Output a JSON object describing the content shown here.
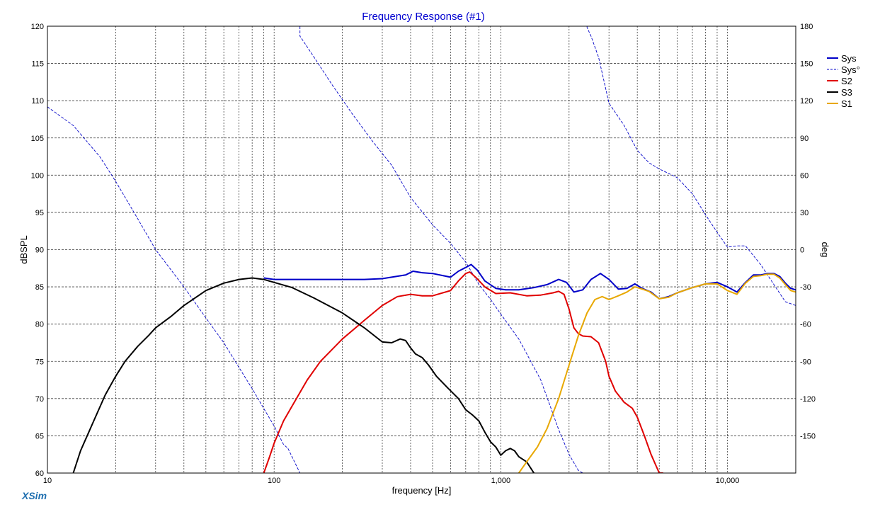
{
  "app": {
    "brand": "XSim"
  },
  "chart_data": {
    "type": "line",
    "title": "Frequency Response (#1)",
    "xlabel": "frequency [Hz]",
    "ylabel": "dBSPL",
    "y2label": "deg",
    "xscale": "log",
    "xlim": [
      10,
      20000
    ],
    "ylim": [
      60,
      120
    ],
    "y2lim": [
      -180,
      180
    ],
    "grid": true,
    "legend_position": "top-right",
    "x_ticks": [
      {
        "v": 10,
        "label": "10"
      },
      {
        "v": 100,
        "label": "100"
      },
      {
        "v": 1000,
        "label": "1,000"
      },
      {
        "v": 10000,
        "label": "10,000"
      }
    ],
    "y_ticks": [
      60,
      65,
      70,
      75,
      80,
      85,
      90,
      95,
      100,
      105,
      110,
      115,
      120
    ],
    "y2_ticks": [
      180,
      150,
      120,
      90,
      60,
      30,
      0,
      -30,
      -60,
      -90,
      -120,
      -150
    ],
    "y2_tick_labels": [
      "180",
      "150",
      "120",
      "90",
      "60",
      "30",
      "0",
      "-30",
      "-60",
      "-90",
      "-120",
      "-150"
    ],
    "series": [
      {
        "name": "Sys",
        "color": "#0000c8",
        "axis": "left",
        "style": "solid",
        "x": [
          90,
          100,
          120,
          150,
          200,
          250,
          300,
          330,
          380,
          410,
          450,
          500,
          600,
          650,
          700,
          740,
          790,
          850,
          950,
          1050,
          1200,
          1400,
          1600,
          1800,
          1950,
          2100,
          2300,
          2500,
          2750,
          3000,
          3300,
          3600,
          3900,
          4200,
          4600,
          5000,
          5500,
          6000,
          7000,
          8000,
          9000,
          10000,
          11000,
          12000,
          13000,
          14000,
          15000,
          16000,
          17000,
          18000,
          19000,
          20000
        ],
        "y": [
          86.2,
          86.0,
          86.0,
          86.0,
          86.0,
          86.0,
          86.1,
          86.3,
          86.6,
          87.1,
          86.9,
          86.8,
          86.3,
          87.1,
          87.6,
          88.0,
          87.2,
          85.8,
          84.8,
          84.6,
          84.6,
          84.9,
          85.3,
          86.0,
          85.6,
          84.3,
          84.6,
          86.0,
          86.8,
          86.0,
          84.7,
          84.8,
          85.4,
          84.8,
          84.3,
          83.4,
          83.7,
          84.2,
          84.9,
          85.4,
          85.6,
          85.0,
          84.3,
          85.6,
          86.6,
          86.6,
          86.8,
          86.8,
          86.4,
          85.5,
          84.8,
          84.6
        ]
      },
      {
        "name": "Sys°",
        "color": "#0000c8",
        "axis": "right",
        "style": "dashed",
        "wrap": true,
        "x": [
          10,
          13,
          17,
          20,
          25,
          30,
          40,
          50,
          60,
          70,
          80,
          90,
          100,
          110,
          115,
          130,
          150,
          180,
          220,
          270,
          330,
          400,
          500,
          600,
          700,
          800,
          900,
          1000,
          1200,
          1500,
          1800,
          2000,
          2200,
          2300,
          2400,
          2500,
          2700,
          3000,
          3500,
          4000,
          4500,
          5000,
          6000,
          7000,
          8000,
          9000,
          10000,
          11000,
          12000,
          14000,
          16000,
          18000,
          20000
        ],
        "y": [
          115,
          100,
          75,
          55,
          25,
          0,
          -30,
          -55,
          -75,
          -95,
          -112,
          -128,
          -142,
          -157,
          -160,
          172,
          155,
          133,
          110,
          88,
          68,
          42,
          20,
          5,
          -10,
          -28,
          -40,
          -52,
          -72,
          -105,
          -145,
          -165,
          -178,
          -180,
          179,
          172,
          155,
          118,
          100,
          80,
          70,
          65,
          58,
          45,
          28,
          14,
          2,
          3,
          3,
          -12,
          -28,
          -42,
          -45
        ]
      },
      {
        "name": "S2",
        "color": "#e00000",
        "axis": "left",
        "style": "solid",
        "x": [
          90,
          95,
          100,
          110,
          120,
          140,
          160,
          200,
          250,
          300,
          350,
          400,
          450,
          500,
          600,
          650,
          700,
          730,
          780,
          850,
          950,
          1100,
          1300,
          1500,
          1700,
          1800,
          1900,
          2000,
          2100,
          2200,
          2300,
          2500,
          2700,
          2900,
          3000,
          3200,
          3500,
          3800,
          4000,
          4300,
          4600,
          5000,
          5200
        ],
        "y": [
          60,
          62,
          64,
          67,
          69,
          72.5,
          75,
          78,
          80.5,
          82.5,
          83.7,
          84.0,
          83.8,
          83.8,
          84.5,
          85.8,
          86.8,
          87.0,
          86.2,
          85.0,
          84.1,
          84.2,
          83.8,
          83.9,
          84.2,
          84.4,
          84.0,
          82.0,
          79.5,
          78.7,
          78.4,
          78.3,
          77.5,
          75,
          73,
          71,
          69.5,
          68.7,
          67.5,
          65,
          62.5,
          60,
          60
        ]
      },
      {
        "name": "S3",
        "color": "#000000",
        "axis": "left",
        "style": "solid",
        "x": [
          13,
          14,
          16,
          18,
          20,
          22,
          25,
          28,
          30,
          35,
          40,
          50,
          60,
          70,
          80,
          90,
          100,
          120,
          150,
          200,
          250,
          300,
          330,
          360,
          380,
          400,
          420,
          450,
          480,
          520,
          580,
          650,
          700,
          750,
          800,
          850,
          900,
          950,
          1000,
          1050,
          1100,
          1150,
          1200,
          1300,
          1400
        ],
        "y": [
          60,
          63,
          67,
          70.5,
          73,
          75,
          77,
          78.5,
          79.5,
          81,
          82.5,
          84.5,
          85.5,
          86.0,
          86.2,
          86.0,
          85.6,
          84.9,
          83.5,
          81.5,
          79.5,
          77.6,
          77.5,
          78.0,
          77.8,
          76.8,
          76.0,
          75.5,
          74.5,
          73.0,
          71.5,
          70.0,
          68.5,
          67.8,
          67.0,
          65.5,
          64.2,
          63.5,
          62.4,
          63.0,
          63.3,
          63.0,
          62.2,
          61.5,
          60
        ]
      },
      {
        "name": "S1",
        "color": "#e8a800",
        "axis": "left",
        "style": "solid",
        "x": [
          1200,
          1300,
          1450,
          1600,
          1800,
          2000,
          2200,
          2400,
          2600,
          2800,
          3000,
          3300,
          3600,
          3900,
          4200,
          4500,
          5000,
          5500,
          6000,
          7000,
          8000,
          9000,
          10000,
          11000,
          12000,
          13000,
          14000,
          15000,
          16000,
          17000,
          18000,
          19000,
          20000
        ],
        "y": [
          60,
          61.5,
          63.5,
          66,
          70,
          74.5,
          78.5,
          81.5,
          83.3,
          83.7,
          83.3,
          83.8,
          84.3,
          85.0,
          84.7,
          84.4,
          83.4,
          83.6,
          84.2,
          84.9,
          85.4,
          85.4,
          84.5,
          84.0,
          85.5,
          86.4,
          86.5,
          86.7,
          86.7,
          86.2,
          85.3,
          84.5,
          84.3
        ]
      }
    ]
  }
}
